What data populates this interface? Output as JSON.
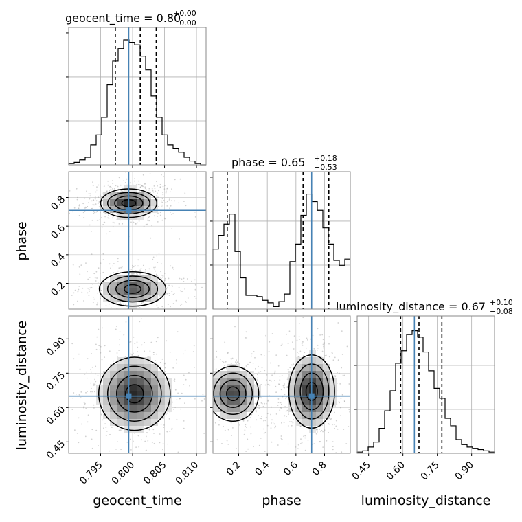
{
  "chart_data": {
    "type": "corner",
    "parameters": [
      "geocent_time",
      "phase",
      "luminosity_distance"
    ],
    "truths": {
      "geocent_time": 0.7994,
      "phase": 0.71,
      "luminosity_distance": 0.65
    },
    "truth_color": "#4682b4",
    "titles": [
      {
        "param": "geocent_time",
        "main": "geocent_time = 0.80",
        "upper": "+0.00",
        "lower": "−0.00"
      },
      {
        "param": "phase",
        "main": "phase = 0.65",
        "upper": "+0.18",
        "lower": "−0.53"
      },
      {
        "param": "luminosity_distance",
        "main": "luminosity_distance = 0.67",
        "upper": "+0.10",
        "lower": "−0.08"
      }
    ],
    "axis_labels": {
      "geocent_time": "geocent_time",
      "phase": "phase",
      "luminosity_distance": "luminosity_distance"
    },
    "ranges": {
      "geocent_time": [
        0.79,
        0.8115
      ],
      "phase": [
        0.02,
        0.98
      ],
      "luminosity_distance": [
        0.4,
        1.0
      ]
    },
    "ticks": {
      "geocent_time": [
        "0.795",
        "0.800",
        "0.805",
        "0.810"
      ],
      "phase": [
        "0.2",
        "0.4",
        "0.6",
        "0.8"
      ],
      "luminosity_distance": [
        "0.45",
        "0.60",
        "0.75",
        "0.90"
      ]
    },
    "quantiles": {
      "geocent_time": [
        0.7973,
        0.8012,
        0.8037
      ],
      "phase": [
        0.12,
        0.65,
        0.83
      ],
      "luminosity_distance": [
        0.59,
        0.67,
        0.77
      ]
    },
    "histograms": {
      "geocent_time": {
        "edges": [
          0.79,
          0.79086,
          0.79172,
          0.79258,
          0.79344,
          0.7943,
          0.79516,
          0.79602,
          0.79688,
          0.79774,
          0.7986,
          0.79946,
          0.80032,
          0.80118,
          0.80204,
          0.8029,
          0.80376,
          0.80462,
          0.80548,
          0.80634,
          0.8072,
          0.80806,
          0.80892,
          0.80978,
          0.81064,
          0.8115
        ],
        "counts": [
          0.01,
          0.02,
          0.04,
          0.06,
          0.16,
          0.24,
          0.38,
          0.64,
          0.83,
          0.93,
          1.0,
          0.98,
          0.96,
          0.87,
          0.76,
          0.55,
          0.38,
          0.24,
          0.16,
          0.13,
          0.1,
          0.06,
          0.03,
          0.01,
          0.0
        ]
      },
      "phase": {
        "edges": [
          0.02,
          0.0584,
          0.0968,
          0.1352,
          0.1736,
          0.212,
          0.2504,
          0.2888,
          0.3272,
          0.3656,
          0.404,
          0.4424,
          0.4808,
          0.5192,
          0.5576,
          0.596,
          0.6344,
          0.6728,
          0.7112,
          0.7496,
          0.788,
          0.8264,
          0.8648,
          0.9032,
          0.9416,
          0.98
        ],
        "counts": [
          0.48,
          0.59,
          0.68,
          0.76,
          0.46,
          0.25,
          0.11,
          0.11,
          0.1,
          0.07,
          0.05,
          0.02,
          0.06,
          0.12,
          0.38,
          0.52,
          0.75,
          0.92,
          0.86,
          0.79,
          0.65,
          0.52,
          0.39,
          0.35,
          0.4
        ]
      },
      "luminosity_distance": {
        "edges": [
          0.4,
          0.424,
          0.448,
          0.472,
          0.496,
          0.52,
          0.544,
          0.568,
          0.592,
          0.616,
          0.64,
          0.664,
          0.688,
          0.712,
          0.736,
          0.76,
          0.784,
          0.808,
          0.832,
          0.856,
          0.88,
          0.904,
          0.928,
          0.952,
          0.976,
          1.0
        ],
        "counts": [
          0.01,
          0.02,
          0.05,
          0.09,
          0.2,
          0.34,
          0.5,
          0.72,
          0.82,
          0.95,
          0.98,
          0.93,
          0.81,
          0.66,
          0.52,
          0.44,
          0.28,
          0.22,
          0.11,
          0.07,
          0.05,
          0.04,
          0.03,
          0.02,
          0.01
        ]
      }
    },
    "joint": [
      {
        "x": "geocent_time",
        "y": "phase",
        "modes": [
          {
            "cx": 0.7994,
            "cy": 0.76,
            "sx": 0.0022,
            "sy": 0.05,
            "w": 1.0
          },
          {
            "cx": 0.8,
            "cy": 0.16,
            "sx": 0.0026,
            "sy": 0.06,
            "w": 0.8
          }
        ]
      },
      {
        "x": "geocent_time",
        "y": "luminosity_distance",
        "modes": [
          {
            "cx": 0.8003,
            "cy": 0.66,
            "sx": 0.0028,
            "sy": 0.08,
            "w": 1.0
          }
        ]
      },
      {
        "x": "phase",
        "y": "luminosity_distance",
        "modes": [
          {
            "cx": 0.16,
            "cy": 0.66,
            "sx": 0.09,
            "sy": 0.06,
            "w": 0.85
          },
          {
            "cx": 0.71,
            "cy": 0.67,
            "sx": 0.08,
            "sy": 0.08,
            "w": 1.0
          }
        ]
      }
    ]
  }
}
